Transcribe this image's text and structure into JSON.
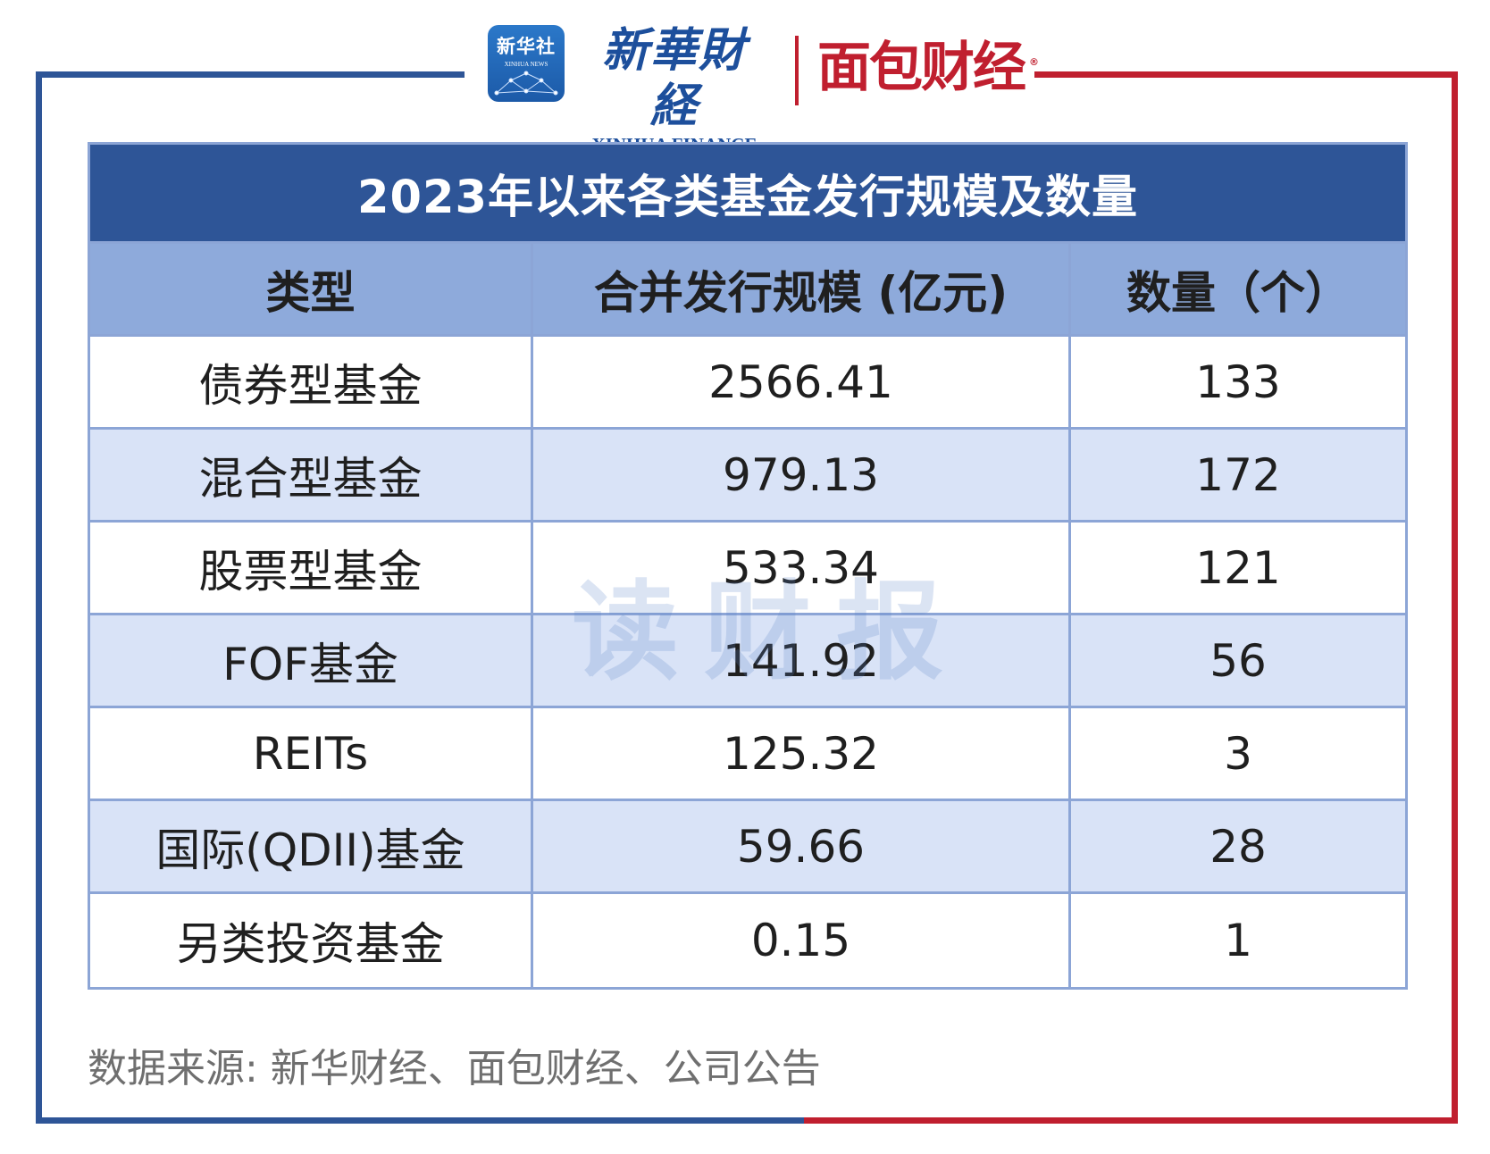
{
  "logos": {
    "xinhua_news_cn": "新华社",
    "xinhua_news_en": "XINHUA NEWS",
    "xinhua_finance_cn": "新華財経",
    "xinhua_finance_en": "XINHUA FINANCE",
    "mianbao_finance": "面包财经",
    "registered_mark": "®"
  },
  "watermark": "读财报",
  "colors": {
    "title_bg": "#2e5597",
    "header_bg": "#8eaadb",
    "alt_row_bg": "#d9e3f7",
    "frame_blue": "#2e5597",
    "frame_red": "#c01f2f"
  },
  "chart_data": {
    "type": "table",
    "title": "2023年以来各类基金发行规模及数量",
    "columns": [
      "类型",
      "合并发行规模 (亿元)",
      "数量（个）"
    ],
    "rows": [
      [
        "债券型基金",
        "2566.41",
        "133"
      ],
      [
        "混合型基金",
        "979.13",
        "172"
      ],
      [
        "股票型基金",
        "533.34",
        "121"
      ],
      [
        "FOF基金",
        "141.92",
        "56"
      ],
      [
        "REITs",
        "125.32",
        "3"
      ],
      [
        "国际(QDII)基金",
        "59.66",
        "28"
      ],
      [
        "另类投资基金",
        "0.15",
        "1"
      ]
    ]
  },
  "source": "数据来源: 新华财经、面包财经、公司公告"
}
